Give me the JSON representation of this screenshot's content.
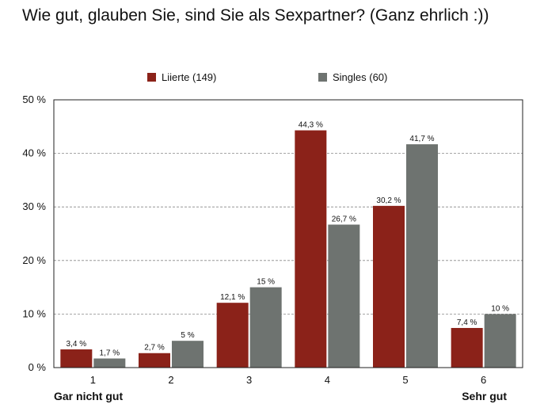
{
  "chart_data": {
    "type": "bar",
    "title": "Wie gut, glauben Sie, sind Sie als Sexpartner? (Ganz ehrlich :))",
    "categories": [
      "1",
      "2",
      "3",
      "4",
      "5",
      "6"
    ],
    "series": [
      {
        "name": "Liierte (149)",
        "color": "#8b2219",
        "values": [
          3.4,
          2.7,
          12.1,
          44.3,
          30.2,
          7.4
        ],
        "labels": [
          "3,4 %",
          "2,7 %",
          "12,1 %",
          "44,3 %",
          "30,2 %",
          "7,4 %"
        ]
      },
      {
        "name": "Singles (60)",
        "color": "#6e7370",
        "values": [
          1.7,
          5,
          15,
          26.7,
          41.7,
          10
        ],
        "labels": [
          "1,7 %",
          "5 %",
          "15 %",
          "26,7 %",
          "41,7 %",
          "10 %"
        ]
      }
    ],
    "ylim": [
      0,
      50
    ],
    "yticks": [
      0,
      10,
      20,
      30,
      40,
      50
    ],
    "ytick_labels": [
      "0 %",
      "10 %",
      "20 %",
      "30 %",
      "40 %",
      "50 %"
    ],
    "xlabel": "",
    "ylabel": "",
    "scale_end_labels": {
      "left": "Gar nicht gut",
      "right": "Sehr gut"
    },
    "grid": true,
    "legend_position": "top"
  }
}
